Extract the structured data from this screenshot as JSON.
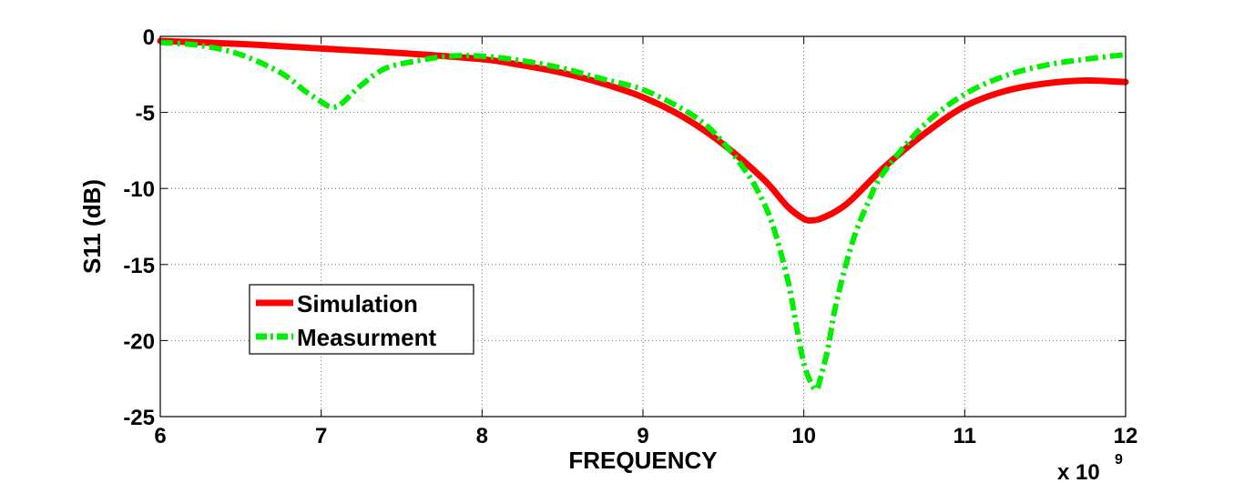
{
  "chart_data": {
    "type": "line",
    "title": "",
    "xlabel": "FREQUENCY",
    "ylabel": "S11 (dB)",
    "x_multiplier_base": "x 10",
    "x_multiplier_exp": "9",
    "xlim": [
      6,
      12
    ],
    "ylim": [
      -25,
      0
    ],
    "xticks": [
      6,
      7,
      8,
      9,
      10,
      11,
      12
    ],
    "yticks": [
      0,
      -5,
      -10,
      -15,
      -20,
      -25
    ],
    "xtick_labels": [
      "6",
      "7",
      "8",
      "9",
      "10",
      "11",
      "12"
    ],
    "ytick_labels": [
      "0",
      "-5",
      "-10",
      "-15",
      "-20",
      "-25"
    ],
    "grid": true,
    "legend_position": "lower-left",
    "series": [
      {
        "name": "Simulation",
        "color": "#ff0000",
        "style": "solid",
        "x": [
          6.0,
          6.5,
          7.0,
          7.5,
          8.0,
          8.25,
          8.5,
          8.75,
          9.0,
          9.25,
          9.5,
          9.75,
          9.9,
          10.0,
          10.05,
          10.1,
          10.2,
          10.3,
          10.5,
          10.75,
          11.0,
          11.25,
          11.5,
          11.75,
          12.0
        ],
        "y": [
          -0.3,
          -0.5,
          -0.8,
          -1.1,
          -1.5,
          -1.9,
          -2.4,
          -3.1,
          -4.0,
          -5.3,
          -7.1,
          -9.4,
          -11.2,
          -12.0,
          -12.1,
          -12.0,
          -11.5,
          -10.7,
          -8.6,
          -6.4,
          -4.6,
          -3.6,
          -3.1,
          -2.9,
          -3.0
        ]
      },
      {
        "name": "Measurment",
        "color": "#00ee00",
        "style": "dashdot",
        "x": [
          6.0,
          6.25,
          6.5,
          6.75,
          6.9,
          7.0,
          7.05,
          7.1,
          7.15,
          7.25,
          7.4,
          7.6,
          7.8,
          8.0,
          8.25,
          8.5,
          8.75,
          9.0,
          9.25,
          9.4,
          9.5,
          9.6,
          9.7,
          9.8,
          9.9,
          9.95,
          10.0,
          10.05,
          10.08,
          10.1,
          10.15,
          10.2,
          10.3,
          10.4,
          10.5,
          10.75,
          11.0,
          11.25,
          11.5,
          11.75,
          12.0
        ],
        "y": [
          -0.4,
          -0.6,
          -1.2,
          -2.4,
          -3.6,
          -4.3,
          -4.6,
          -4.6,
          -4.2,
          -3.2,
          -2.1,
          -1.6,
          -1.3,
          -1.3,
          -1.6,
          -2.1,
          -2.8,
          -3.5,
          -4.8,
          -5.9,
          -7.0,
          -8.3,
          -9.9,
          -12.2,
          -16.0,
          -18.8,
          -21.5,
          -22.9,
          -23.2,
          -22.6,
          -20.5,
          -17.6,
          -13.6,
          -10.9,
          -8.9,
          -5.8,
          -3.8,
          -2.6,
          -1.9,
          -1.5,
          -1.2
        ]
      }
    ]
  }
}
